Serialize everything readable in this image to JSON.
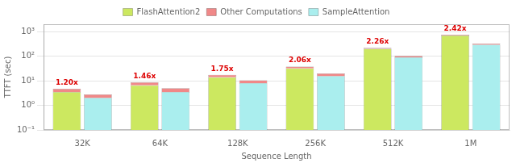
{
  "chart_data": {
    "type": "bar",
    "stacked": true,
    "log": "y",
    "categories": [
      "32K",
      "64K",
      "128K",
      "256K",
      "512K",
      "1M"
    ],
    "series": [
      {
        "name": "FlashAttention2",
        "color": "#cce860",
        "values": [
          3.5,
          6.5,
          14.0,
          32.0,
          200.0,
          700.0
        ]
      },
      {
        "name": "Other Computations",
        "color": "#f08888",
        "values": [
          1.2,
          2.2,
          3.5,
          6.0,
          18.0,
          55.0
        ]
      },
      {
        "name": "SampleAttention",
        "color": "#aaeeee",
        "values": [
          2.0,
          3.5,
          8.0,
          15.5,
          90.0,
          290.0
        ]
      },
      {
        "name": "Other Computations",
        "color": "#f08888",
        "values": [
          0.8,
          1.5,
          2.5,
          4.5,
          12.0,
          35.0
        ]
      }
    ],
    "xlabel": "Sequence Length",
    "ylabel": "TTFT (sec)",
    "ylim": [
      0.1,
      2000
    ],
    "yticks": [
      {
        "value": 0.1,
        "label": "10⁻¹"
      },
      {
        "value": 1,
        "label": "10⁰"
      },
      {
        "value": 10,
        "label": "10¹"
      },
      {
        "value": 100,
        "label": "10²"
      },
      {
        "value": 1000,
        "label": "10³"
      }
    ],
    "grid": "y",
    "legend": "top",
    "annotations": [
      {
        "category": "32K",
        "series": "FlashAttention2",
        "text": "1.20x",
        "color": "#dd0000"
      },
      {
        "category": "64K",
        "series": "FlashAttention2",
        "text": "1.46x",
        "color": "#dd0000"
      },
      {
        "category": "128K",
        "series": "FlashAttention2",
        "text": "1.75x",
        "color": "#dd0000"
      },
      {
        "category": "256K",
        "series": "FlashAttention2",
        "text": "2.06x",
        "color": "#dd0000"
      },
      {
        "category": "512K",
        "series": "FlashAttention2",
        "text": "2.26x",
        "color": "#dd0000"
      },
      {
        "category": "1M",
        "series": "FlashAttention2",
        "text": "2.42x",
        "color": "#dd0000"
      }
    ]
  }
}
